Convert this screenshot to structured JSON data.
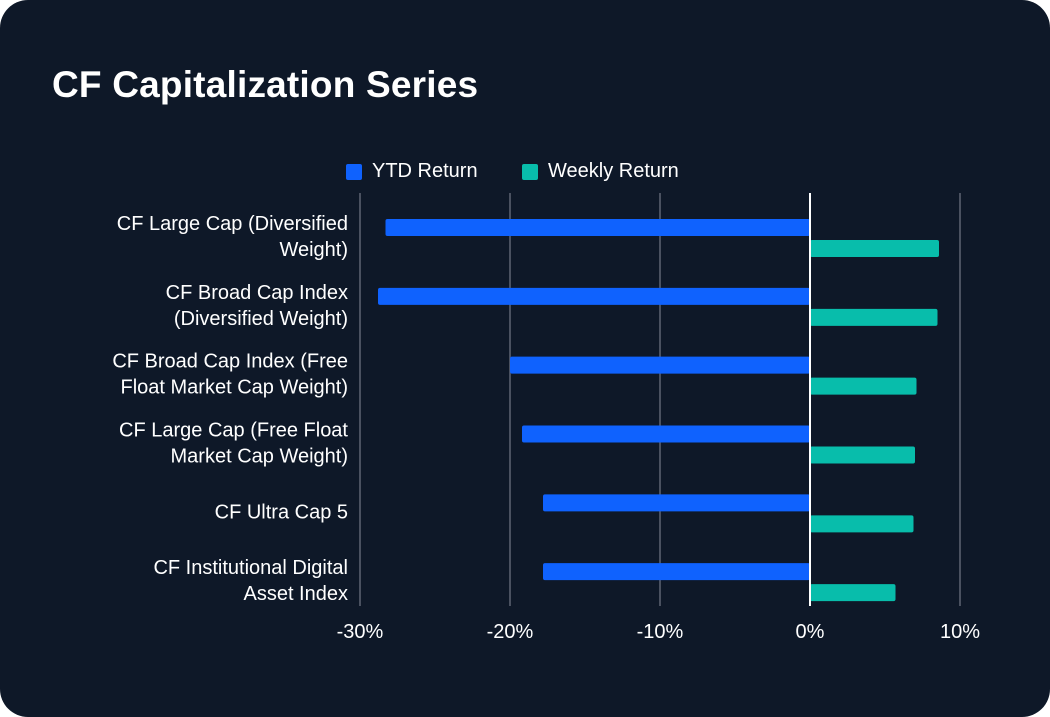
{
  "title": "CF Capitalization Series",
  "colors": {
    "background": "#0e1828",
    "ytd": "#0f62fe",
    "weekly": "#08bdab",
    "grid": "#4a5160",
    "zero_line": "#ffffff",
    "text": "#ffffff"
  },
  "chart_data": {
    "type": "bar",
    "orientation": "horizontal",
    "title": "CF Capitalization Series",
    "categories": [
      [
        "CF Large Cap (Diversified",
        "Weight)"
      ],
      [
        "CF Broad Cap Index",
        "(Diversified Weight)"
      ],
      [
        "CF Broad Cap Index (Free",
        "Float Market Cap Weight)"
      ],
      [
        "CF Large Cap (Free Float",
        "Market Cap Weight)"
      ],
      [
        "CF Ultra Cap 5"
      ],
      [
        "CF Institutional Digital",
        "Asset Index"
      ]
    ],
    "series": [
      {
        "name": "YTD Return",
        "color": "#0f62fe",
        "values": [
          -28.3,
          -28.8,
          -20.0,
          -19.2,
          -17.8,
          -17.8
        ]
      },
      {
        "name": "Weekly Return",
        "color": "#08bdab",
        "values": [
          8.6,
          8.5,
          7.1,
          7.0,
          6.9,
          5.7
        ]
      }
    ],
    "xlim": [
      -30,
      10
    ],
    "xticks": [
      -30,
      -20,
      -10,
      0,
      10
    ],
    "xtick_labels": [
      "-30%",
      "-20%",
      "-10%",
      "0%",
      "10%"
    ],
    "legend": "top-center",
    "grid": true
  }
}
